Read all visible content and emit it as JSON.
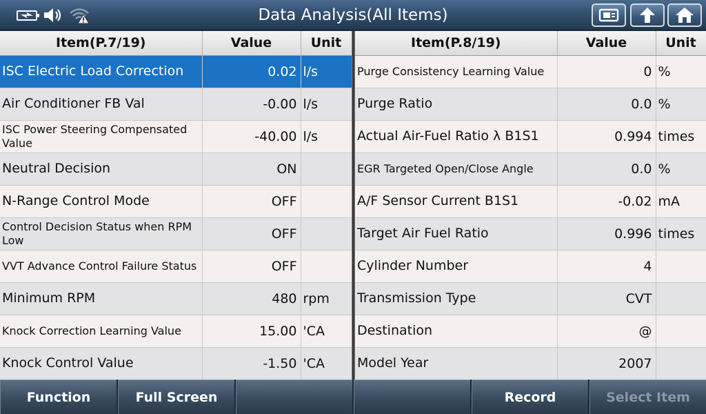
{
  "header": {
    "title": "Data Analysis(All Items)",
    "icons": [
      "battery-charging-icon",
      "speaker-icon",
      "wifi-warning-icon"
    ],
    "buttons": [
      "screenshot-icon",
      "back-icon",
      "home-icon"
    ]
  },
  "left_table": {
    "columns": {
      "item": "Item(P.7/19)",
      "value": "Value",
      "unit": "Unit"
    },
    "rows": [
      {
        "item": "ISC Electric Load Correction",
        "value": "0.02",
        "unit": "l/s"
      },
      {
        "item": "Air Conditioner FB Val",
        "value": "-0.00",
        "unit": "l/s"
      },
      {
        "item": "ISC Power Steering Compensated Value",
        "value": "-40.00",
        "unit": "l/s"
      },
      {
        "item": "Neutral Decision",
        "value": "ON",
        "unit": ""
      },
      {
        "item": "N-Range Control Mode",
        "value": "OFF",
        "unit": ""
      },
      {
        "item": "Control Decision Status when RPM Low",
        "value": "OFF",
        "unit": ""
      },
      {
        "item": "VVT Advance Control Failure Status",
        "value": "OFF",
        "unit": ""
      },
      {
        "item": "Minimum RPM",
        "value": "480",
        "unit": "rpm"
      },
      {
        "item": "Knock Correction Learning Value",
        "value": "15.00",
        "unit": "'CA"
      },
      {
        "item": "Knock Control Value",
        "value": "-1.50",
        "unit": "'CA"
      }
    ]
  },
  "right_table": {
    "columns": {
      "item": "Item(P.8/19)",
      "value": "Value",
      "unit": "Unit"
    },
    "rows": [
      {
        "item": "Purge Consistency Learning Value",
        "value": "0",
        "unit": "%"
      },
      {
        "item": "Purge Ratio",
        "value": "0.0",
        "unit": "%"
      },
      {
        "item": "Actual Air-Fuel Ratio λ B1S1",
        "value": "0.994",
        "unit": "times"
      },
      {
        "item": "EGR Targeted Open/Close Angle",
        "value": "0.0",
        "unit": "%"
      },
      {
        "item": "A/F Sensor Current B1S1",
        "value": "-0.02",
        "unit": "mA"
      },
      {
        "item": "Target Air Fuel Ratio",
        "value": "0.996",
        "unit": "times"
      },
      {
        "item": "Cylinder Number",
        "value": "4",
        "unit": ""
      },
      {
        "item": "Transmission Type",
        "value": "CVT",
        "unit": ""
      },
      {
        "item": "Destination",
        "value": "@",
        "unit": ""
      },
      {
        "item": "Model Year",
        "value": "2007",
        "unit": ""
      }
    ]
  },
  "bottom_bar": {
    "function": "Function",
    "full_screen": "Full Screen",
    "blank1": "",
    "blank2": "",
    "record": "Record",
    "select_item": "Select Item"
  },
  "colors": {
    "selected_row": "#1a73c4",
    "title_bar": "#33506f"
  }
}
